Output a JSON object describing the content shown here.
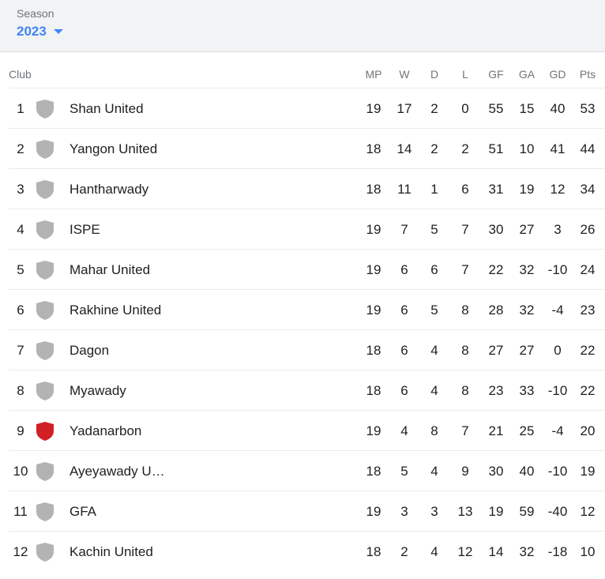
{
  "season": {
    "label": "Season",
    "value": "2023"
  },
  "columns": {
    "club": "Club",
    "mp": "MP",
    "w": "W",
    "d": "D",
    "l": "L",
    "gf": "GF",
    "ga": "GA",
    "gd": "GD",
    "pts": "Pts"
  },
  "colors": {
    "accent": "#4285f4",
    "shield_default": "#b3b3b3",
    "shield_highlight": "#d21f26"
  },
  "rows": [
    {
      "rank": "1",
      "club": "Shan United",
      "mp": "19",
      "w": "17",
      "d": "2",
      "l": "0",
      "gf": "55",
      "ga": "15",
      "gd": "40",
      "pts": "53",
      "crest": "#b3b3b3"
    },
    {
      "rank": "2",
      "club": "Yangon United",
      "mp": "18",
      "w": "14",
      "d": "2",
      "l": "2",
      "gf": "51",
      "ga": "10",
      "gd": "41",
      "pts": "44",
      "crest": "#b3b3b3"
    },
    {
      "rank": "3",
      "club": "Hantharwady",
      "mp": "18",
      "w": "11",
      "d": "1",
      "l": "6",
      "gf": "31",
      "ga": "19",
      "gd": "12",
      "pts": "34",
      "crest": "#b3b3b3"
    },
    {
      "rank": "4",
      "club": "ISPE",
      "mp": "19",
      "w": "7",
      "d": "5",
      "l": "7",
      "gf": "30",
      "ga": "27",
      "gd": "3",
      "pts": "26",
      "crest": "#b3b3b3"
    },
    {
      "rank": "5",
      "club": "Mahar United",
      "mp": "19",
      "w": "6",
      "d": "6",
      "l": "7",
      "gf": "22",
      "ga": "32",
      "gd": "-10",
      "pts": "24",
      "crest": "#b3b3b3"
    },
    {
      "rank": "6",
      "club": "Rakhine United",
      "mp": "19",
      "w": "6",
      "d": "5",
      "l": "8",
      "gf": "28",
      "ga": "32",
      "gd": "-4",
      "pts": "23",
      "crest": "#b3b3b3"
    },
    {
      "rank": "7",
      "club": "Dagon",
      "mp": "18",
      "w": "6",
      "d": "4",
      "l": "8",
      "gf": "27",
      "ga": "27",
      "gd": "0",
      "pts": "22",
      "crest": "#b3b3b3"
    },
    {
      "rank": "8",
      "club": "Myawady",
      "mp": "18",
      "w": "6",
      "d": "4",
      "l": "8",
      "gf": "23",
      "ga": "33",
      "gd": "-10",
      "pts": "22",
      "crest": "#b3b3b3"
    },
    {
      "rank": "9",
      "club": "Yadanarbon",
      "mp": "19",
      "w": "4",
      "d": "8",
      "l": "7",
      "gf": "21",
      "ga": "25",
      "gd": "-4",
      "pts": "20",
      "crest": "#d21f26"
    },
    {
      "rank": "10",
      "club": "Ayeyawady U…",
      "mp": "18",
      "w": "5",
      "d": "4",
      "l": "9",
      "gf": "30",
      "ga": "40",
      "gd": "-10",
      "pts": "19",
      "crest": "#b3b3b3"
    },
    {
      "rank": "11",
      "club": "GFA",
      "mp": "19",
      "w": "3",
      "d": "3",
      "l": "13",
      "gf": "19",
      "ga": "59",
      "gd": "-40",
      "pts": "12",
      "crest": "#b3b3b3"
    },
    {
      "rank": "12",
      "club": "Kachin United",
      "mp": "18",
      "w": "2",
      "d": "4",
      "l": "12",
      "gf": "14",
      "ga": "32",
      "gd": "-18",
      "pts": "10",
      "crest": "#b3b3b3"
    }
  ]
}
